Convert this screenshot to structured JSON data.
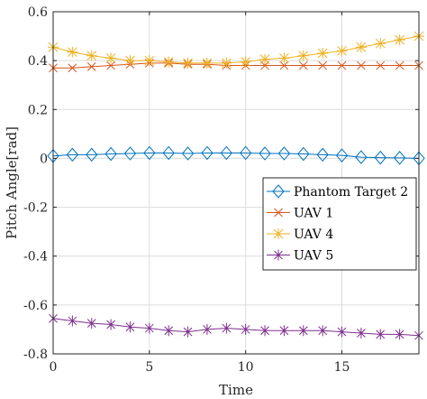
{
  "chart_data": {
    "type": "line",
    "xlabel": "Time",
    "ylabel": "Pitch Angle[rad]",
    "xlim": [
      0,
      19
    ],
    "ylim": [
      -0.8,
      0.6
    ],
    "xticks": [
      0,
      5,
      10,
      15
    ],
    "xtick_labels": [
      "0",
      "5",
      "10",
      "15"
    ],
    "yticks": [
      -0.8,
      -0.6,
      -0.4,
      -0.2,
      0,
      0.2,
      0.4,
      0.6
    ],
    "ytick_labels": [
      "-0.8",
      "-0.6",
      "-0.4",
      "-0.2",
      "0",
      "0.2",
      "0.4",
      "0.6"
    ],
    "grid": true,
    "legend_position": "right-middle",
    "x": [
      0,
      1,
      2,
      3,
      4,
      5,
      6,
      7,
      8,
      9,
      10,
      11,
      12,
      13,
      14,
      15,
      16,
      17,
      18,
      19
    ],
    "series": [
      {
        "name": "Phantom Target 2",
        "color": "#0072BD",
        "marker": "diamond",
        "values": [
          0.01,
          0.015,
          0.015,
          0.018,
          0.02,
          0.022,
          0.022,
          0.02,
          0.022,
          0.022,
          0.022,
          0.02,
          0.02,
          0.018,
          0.015,
          0.012,
          0.005,
          0.003,
          0.002,
          0.0
        ]
      },
      {
        "name": "UAV 1",
        "color": "#D95319",
        "marker": "x",
        "values": [
          0.37,
          0.37,
          0.375,
          0.38,
          0.385,
          0.39,
          0.39,
          0.385,
          0.385,
          0.38,
          0.38,
          0.38,
          0.38,
          0.38,
          0.38,
          0.38,
          0.38,
          0.38,
          0.38,
          0.38
        ]
      },
      {
        "name": "UAV 4",
        "color": "#EDB120",
        "marker": "star",
        "values": [
          0.455,
          0.435,
          0.42,
          0.41,
          0.4,
          0.4,
          0.395,
          0.39,
          0.39,
          0.39,
          0.395,
          0.405,
          0.41,
          0.42,
          0.43,
          0.44,
          0.455,
          0.47,
          0.485,
          0.5
        ]
      },
      {
        "name": "UAV 5",
        "color": "#7E2F8E",
        "marker": "asterisk",
        "values": [
          -0.655,
          -0.665,
          -0.675,
          -0.68,
          -0.69,
          -0.695,
          -0.705,
          -0.71,
          -0.7,
          -0.695,
          -0.7,
          -0.705,
          -0.705,
          -0.705,
          -0.705,
          -0.71,
          -0.715,
          -0.72,
          -0.72,
          -0.725
        ]
      }
    ]
  }
}
